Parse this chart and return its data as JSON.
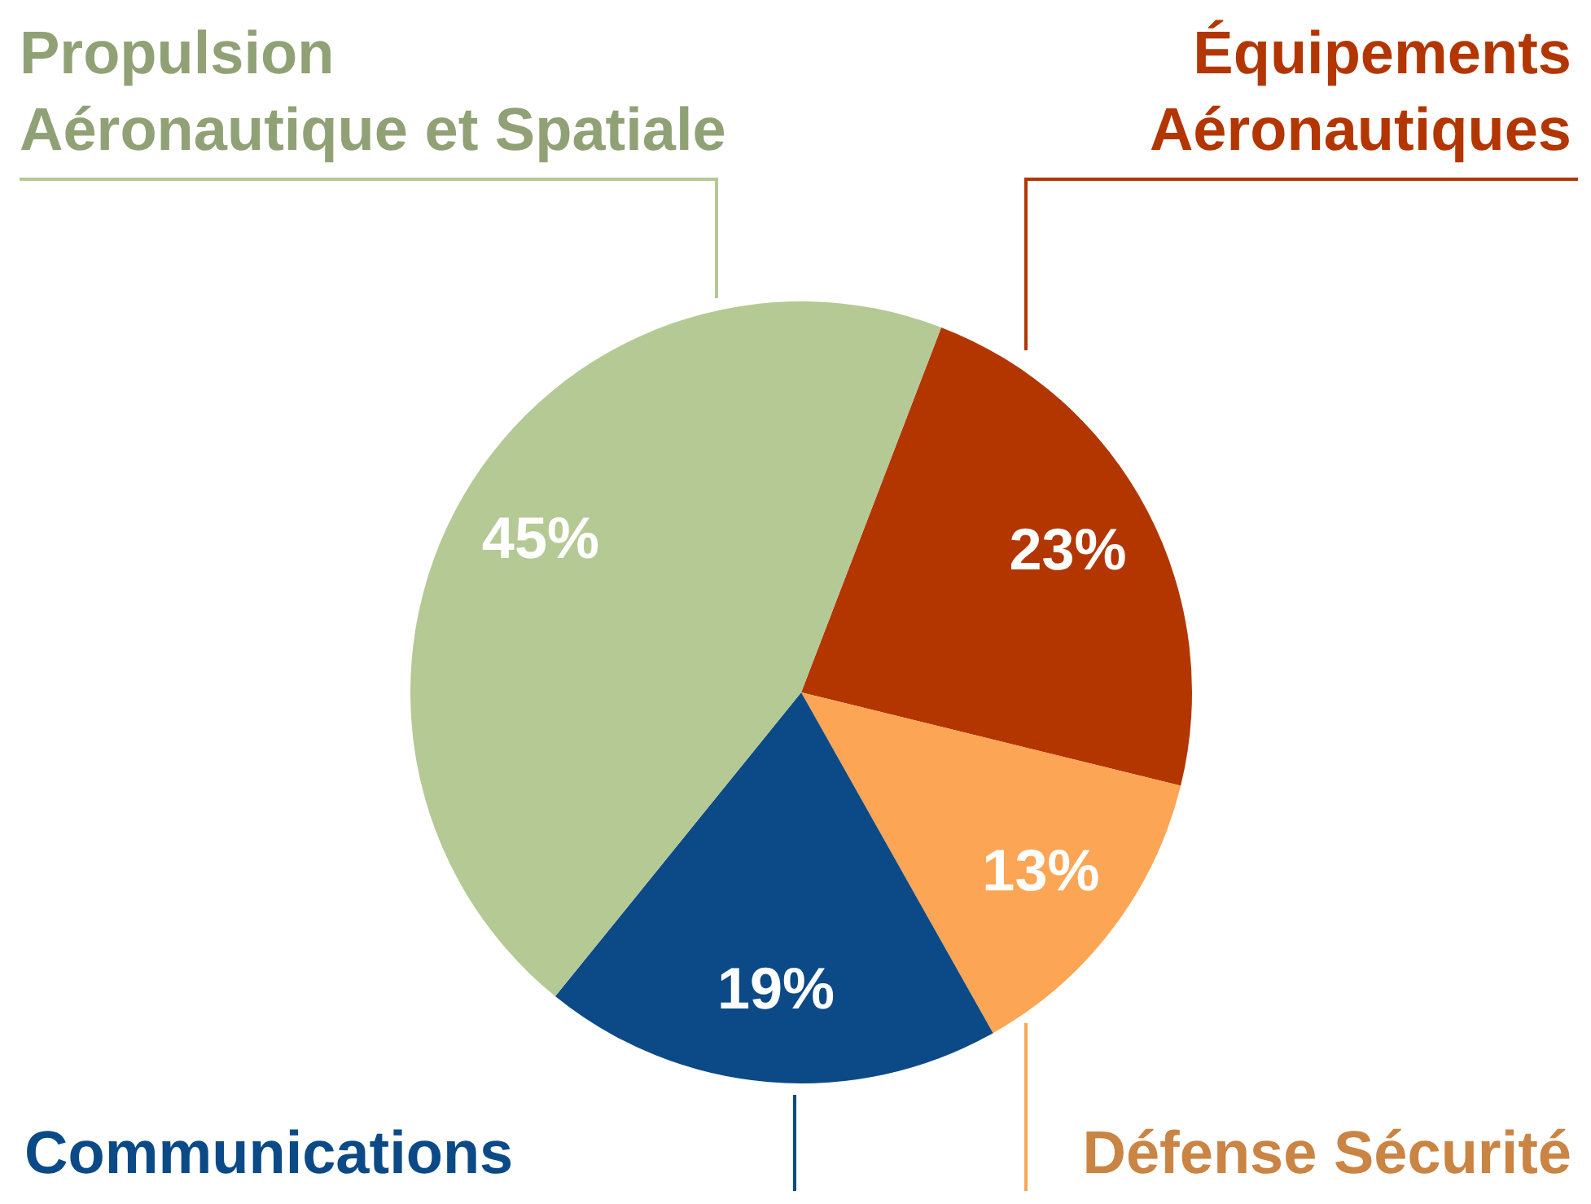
{
  "chart_data": {
    "type": "pie",
    "categories": [
      "Équipements\nAéronautiques",
      "Défense Sécurité",
      "Communications",
      "Propulsion\nAéronautique et Spatiale"
    ],
    "values": [
      23,
      13,
      19,
      45
    ],
    "value_labels": [
      "23%",
      "13%",
      "19%",
      "45%"
    ],
    "colors": [
      "#b33600",
      "#fca554",
      "#0b4a87",
      "#b5c994"
    ],
    "legend": false
  }
}
